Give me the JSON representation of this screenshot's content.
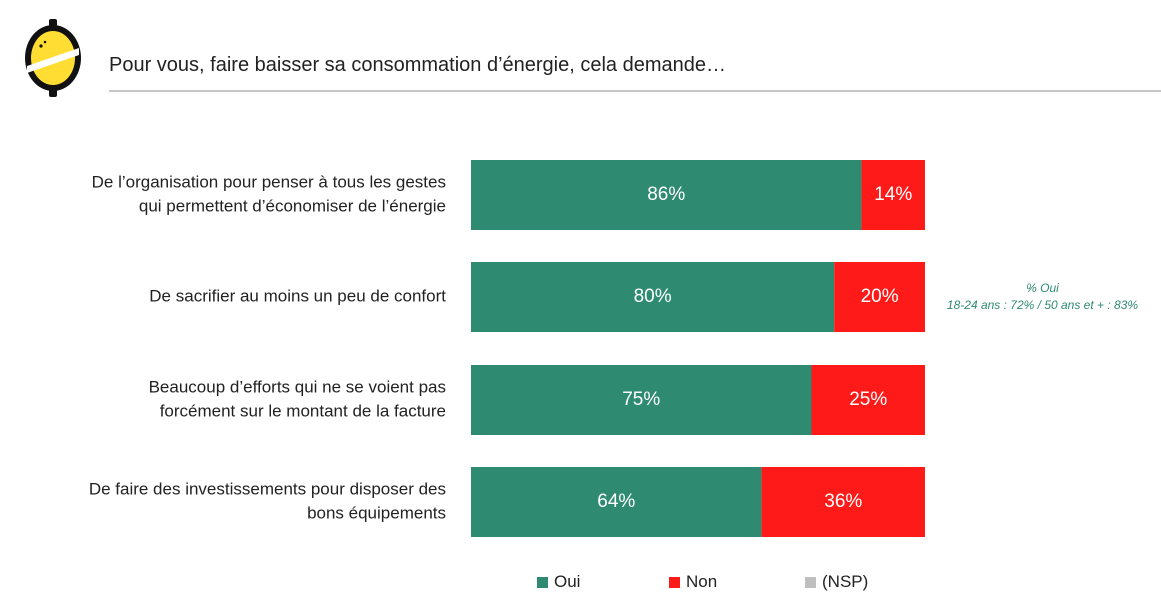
{
  "header": {
    "title": "Pour vous, faire baisser sa consommation d’énergie, cela demande…"
  },
  "colors": {
    "oui": "#2e8b72",
    "non": "#ff1a1a",
    "nsp": "#bfbfbf",
    "note": "#2f8a72"
  },
  "chart_data": {
    "type": "bar",
    "orientation": "horizontal",
    "stacked": true,
    "value_format": "percent",
    "categories": [
      [
        "De l’organisation pour penser à tous les gestes",
        "qui permettent d’économiser de l’énergie"
      ],
      [
        "De sacrifier au moins un peu de confort"
      ],
      [
        "Beaucoup d’efforts qui ne se voient pas",
        "forcément sur le montant de la facture"
      ],
      [
        "De faire des investissements pour disposer des",
        "bons équipements"
      ]
    ],
    "series": [
      {
        "name": "Oui",
        "values": [
          86,
          80,
          75,
          64
        ]
      },
      {
        "name": "Non",
        "values": [
          14,
          20,
          25,
          36
        ]
      },
      {
        "name": "(NSP)",
        "values": [
          0,
          0,
          0,
          0
        ]
      }
    ],
    "xlim": [
      0,
      100
    ],
    "grid": false,
    "legend_position": "bottom",
    "annotation": {
      "row": 1,
      "lines": [
        "% Oui",
        "18-24 ans : 72% / 50 ans et + : 83%"
      ]
    }
  }
}
